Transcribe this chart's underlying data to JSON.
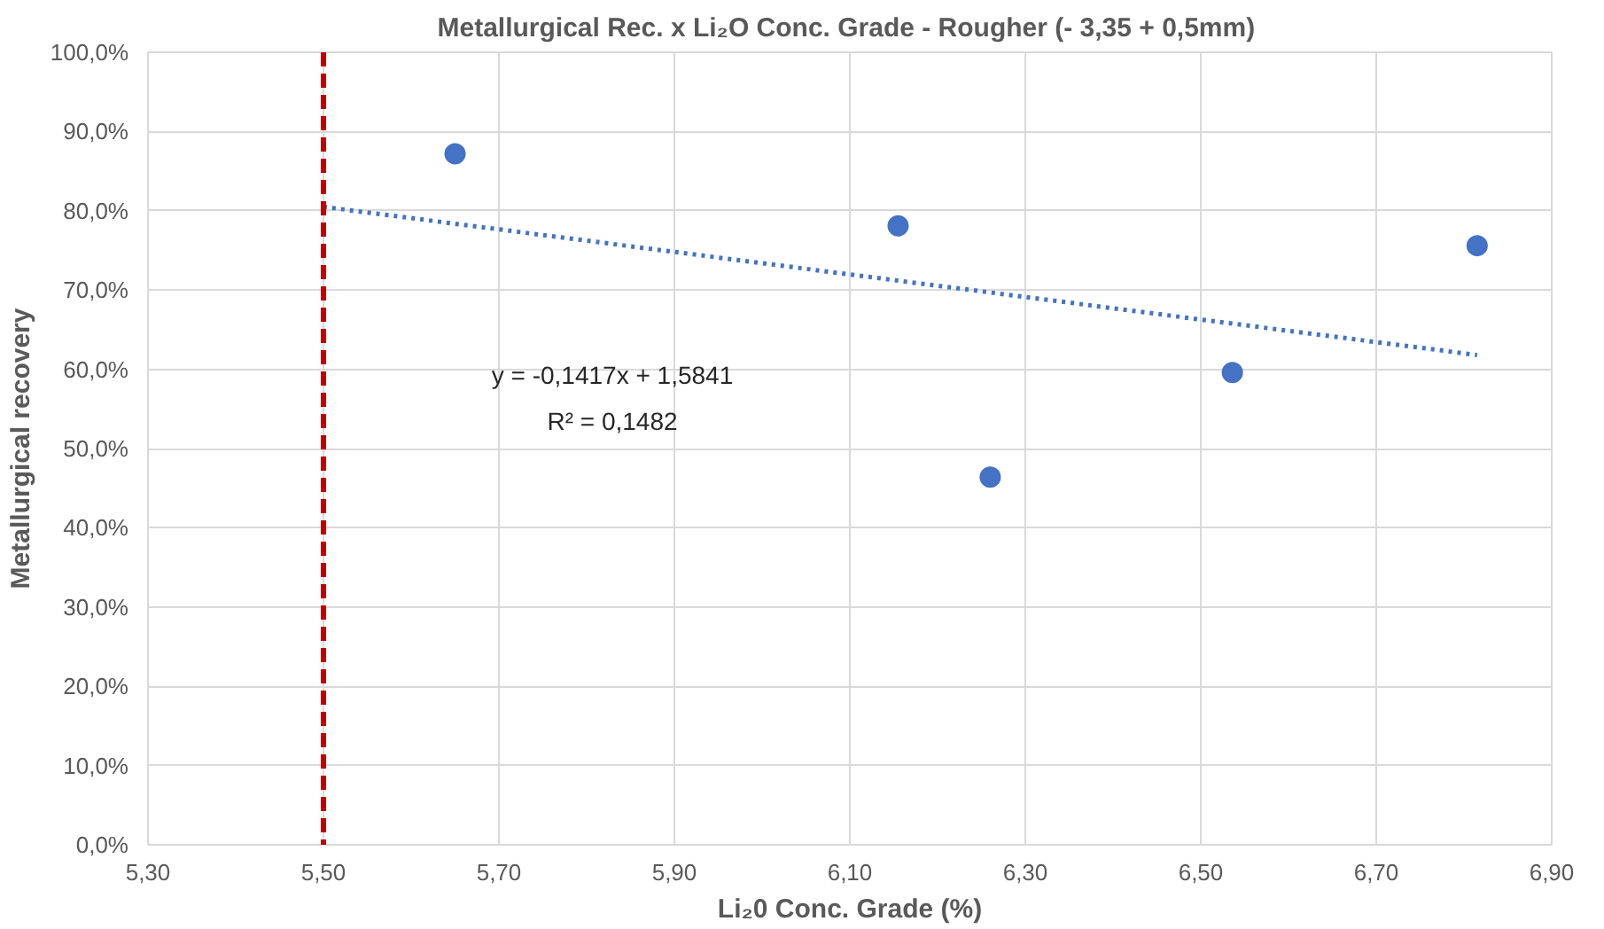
{
  "chart_data": {
    "type": "scatter",
    "title": "Metallurgical Rec. x  Li₂O Conc. Grade - Rougher (- 3,35 + 0,5mm)",
    "xlabel": "Li₂0 Conc. Grade (%)",
    "ylabel": "Metallurgical recovery",
    "series": [
      {
        "color": "#4472c4",
        "marker": "circle",
        "x": [
          5.65,
          6.155,
          6.26,
          6.536,
          6.815
        ],
        "values": [
          87.2,
          78.1,
          46.4,
          59.6,
          75.6
        ]
      },
      {
        "type": "line",
        "color": "#4472c4",
        "line_style": "dotted",
        "marker": "none",
        "x": [
          5.5,
          6.815
        ],
        "values": [
          80.5,
          61.8
        ]
      }
    ],
    "xlim": [
      5.3,
      6.9
    ],
    "xticks": [
      {
        "value": 5.3,
        "label": "5,30"
      },
      {
        "value": 5.5,
        "label": "5,50"
      },
      {
        "value": 5.7,
        "label": "5,70"
      },
      {
        "value": 5.9,
        "label": "5,90"
      },
      {
        "value": 6.1,
        "label": "6,10"
      },
      {
        "value": 6.3,
        "label": "6,30"
      },
      {
        "value": 6.5,
        "label": "6,50"
      },
      {
        "value": 6.7,
        "label": "6,70"
      },
      {
        "value": 6.9,
        "label": "6,90"
      }
    ],
    "ylim": [
      0,
      100
    ],
    "yticks": [
      {
        "value": 0,
        "label": "0,0%"
      },
      {
        "value": 10,
        "label": "10,0%"
      },
      {
        "value": 20,
        "label": "20,0%"
      },
      {
        "value": 30,
        "label": "30,0%"
      },
      {
        "value": 40,
        "label": "40,0%"
      },
      {
        "value": 50,
        "label": "50,0%"
      },
      {
        "value": 60,
        "label": "60,0%"
      },
      {
        "value": 70,
        "label": "70,0%"
      },
      {
        "value": 80,
        "label": "80,0%"
      },
      {
        "value": 90,
        "label": "90,0%"
      },
      {
        "value": 100,
        "label": "100,0%"
      }
    ],
    "ref_lines": [
      {
        "axis": "x",
        "value": 5.5,
        "label": null,
        "color": "#c00000",
        "line_style": "dashed"
      }
    ],
    "annotations": [
      "y = -0,1417x + 1,5841",
      "R² = 0,1482"
    ],
    "grid": true
  }
}
